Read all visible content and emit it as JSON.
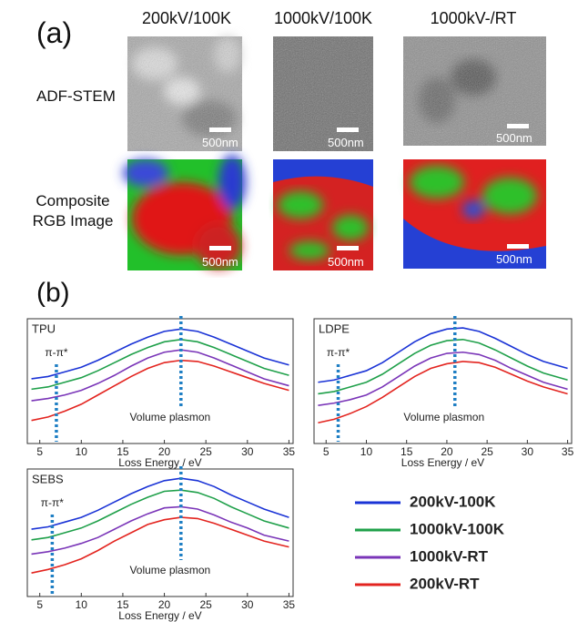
{
  "panel_a": {
    "label": "(a)",
    "columns": [
      "200kV/100K",
      "1000kV/100K",
      "1000kV-/RT"
    ],
    "rows": [
      "ADF-STEM",
      "Composite RGB Image"
    ],
    "scale_bar": "500nm"
  },
  "panel_b_label": "(b)",
  "chart_data": [
    {
      "type": "line",
      "title": "TPU",
      "xlabel": "Loss Energy / eV",
      "xlim": [
        3.5,
        35.5
      ],
      "xticks": [
        5,
        10,
        15,
        20,
        25,
        30,
        35
      ],
      "ylim": [
        0,
        10
      ],
      "x": [
        4,
        6,
        8,
        10,
        12,
        14,
        16,
        18,
        20,
        22,
        24,
        26,
        28,
        30,
        32,
        35
      ],
      "markers": [
        {
          "label": "π-π*",
          "x": 7
        },
        {
          "label": "Volume plasmon",
          "x": 22
        }
      ],
      "series": [
        {
          "name": "200kV-100K",
          "color": "#1a33d6",
          "values": [
            5.2,
            5.4,
            5.8,
            6.2,
            6.8,
            7.5,
            8.2,
            8.8,
            9.3,
            9.5,
            9.3,
            8.8,
            8.2,
            7.6,
            7.0,
            6.4
          ]
        },
        {
          "name": "1000kV-100K",
          "color": "#1fa04a",
          "values": [
            4.3,
            4.5,
            4.9,
            5.3,
            5.9,
            6.6,
            7.3,
            7.9,
            8.4,
            8.6,
            8.4,
            7.9,
            7.3,
            6.7,
            6.1,
            5.5
          ]
        },
        {
          "name": "1000kV-RT",
          "color": "#7a35b8",
          "values": [
            3.3,
            3.5,
            3.8,
            4.2,
            4.8,
            5.5,
            6.3,
            7.0,
            7.5,
            7.7,
            7.5,
            7.0,
            6.4,
            5.8,
            5.2,
            4.6
          ]
        },
        {
          "name": "200kV-RT",
          "color": "#e3241f",
          "values": [
            1.6,
            1.9,
            2.4,
            3.0,
            3.8,
            4.6,
            5.4,
            6.1,
            6.6,
            6.8,
            6.7,
            6.3,
            5.8,
            5.3,
            4.8,
            4.2
          ]
        }
      ]
    },
    {
      "type": "line",
      "title": "LDPE",
      "xlabel": "Loss Energy / eV",
      "xlim": [
        3.5,
        35.5
      ],
      "xticks": [
        5,
        10,
        15,
        20,
        25,
        30,
        35
      ],
      "ylim": [
        0,
        10
      ],
      "x": [
        4,
        6,
        8,
        10,
        12,
        14,
        16,
        18,
        20,
        22,
        24,
        26,
        28,
        30,
        32,
        35
      ],
      "markers": [
        {
          "label": "π-π*",
          "x": 6.5
        },
        {
          "label": "Volume plasmon",
          "x": 21
        }
      ],
      "series": [
        {
          "name": "200kV-100K",
          "color": "#1a33d6",
          "values": [
            4.9,
            5.1,
            5.5,
            5.9,
            6.6,
            7.5,
            8.4,
            9.1,
            9.5,
            9.6,
            9.3,
            8.7,
            8.0,
            7.3,
            6.7,
            6.1
          ]
        },
        {
          "name": "1000kV-100K",
          "color": "#1fa04a",
          "values": [
            3.9,
            4.1,
            4.5,
            4.9,
            5.6,
            6.5,
            7.4,
            8.1,
            8.5,
            8.6,
            8.3,
            7.7,
            7.0,
            6.3,
            5.7,
            5.1
          ]
        },
        {
          "name": "1000kV-RT",
          "color": "#7a35b8",
          "values": [
            2.9,
            3.1,
            3.4,
            3.8,
            4.5,
            5.4,
            6.3,
            7.0,
            7.4,
            7.5,
            7.3,
            6.8,
            6.1,
            5.5,
            4.9,
            4.3
          ]
        },
        {
          "name": "200kV-RT",
          "color": "#e3241f",
          "values": [
            1.4,
            1.7,
            2.2,
            2.8,
            3.6,
            4.5,
            5.4,
            6.1,
            6.5,
            6.7,
            6.6,
            6.2,
            5.6,
            5.0,
            4.5,
            3.9
          ]
        }
      ]
    },
    {
      "type": "line",
      "title": "SEBS",
      "xlabel": "Loss Energy / eV",
      "xlim": [
        3.5,
        35.5
      ],
      "xticks": [
        5,
        10,
        15,
        20,
        25,
        30,
        35
      ],
      "ylim": [
        0,
        10
      ],
      "x": [
        4,
        6,
        8,
        10,
        12,
        14,
        16,
        18,
        20,
        22,
        24,
        26,
        28,
        30,
        32,
        35
      ],
      "markers": [
        {
          "label": "π-π*",
          "x": 6.5
        },
        {
          "label": "Volume plasmon",
          "x": 22
        }
      ],
      "series": [
        {
          "name": "200kV-100K",
          "color": "#1a33d6",
          "values": [
            5.3,
            5.5,
            5.9,
            6.3,
            6.9,
            7.6,
            8.3,
            8.9,
            9.4,
            9.6,
            9.4,
            8.9,
            8.2,
            7.6,
            7.0,
            6.3
          ]
        },
        {
          "name": "1000kV-100K",
          "color": "#1fa04a",
          "values": [
            4.4,
            4.6,
            5.0,
            5.4,
            6.0,
            6.7,
            7.4,
            8.0,
            8.5,
            8.6,
            8.4,
            7.9,
            7.2,
            6.6,
            6.0,
            5.4
          ]
        },
        {
          "name": "1000kV-RT",
          "color": "#7a35b8",
          "values": [
            3.2,
            3.4,
            3.7,
            4.1,
            4.6,
            5.3,
            6.0,
            6.6,
            7.1,
            7.2,
            7.0,
            6.5,
            5.9,
            5.4,
            4.8,
            4.3
          ]
        },
        {
          "name": "200kV-RT",
          "color": "#e3241f",
          "values": [
            1.6,
            1.9,
            2.3,
            2.8,
            3.5,
            4.3,
            5.0,
            5.7,
            6.1,
            6.3,
            6.2,
            5.8,
            5.3,
            4.8,
            4.3,
            3.8
          ]
        }
      ]
    }
  ]
}
